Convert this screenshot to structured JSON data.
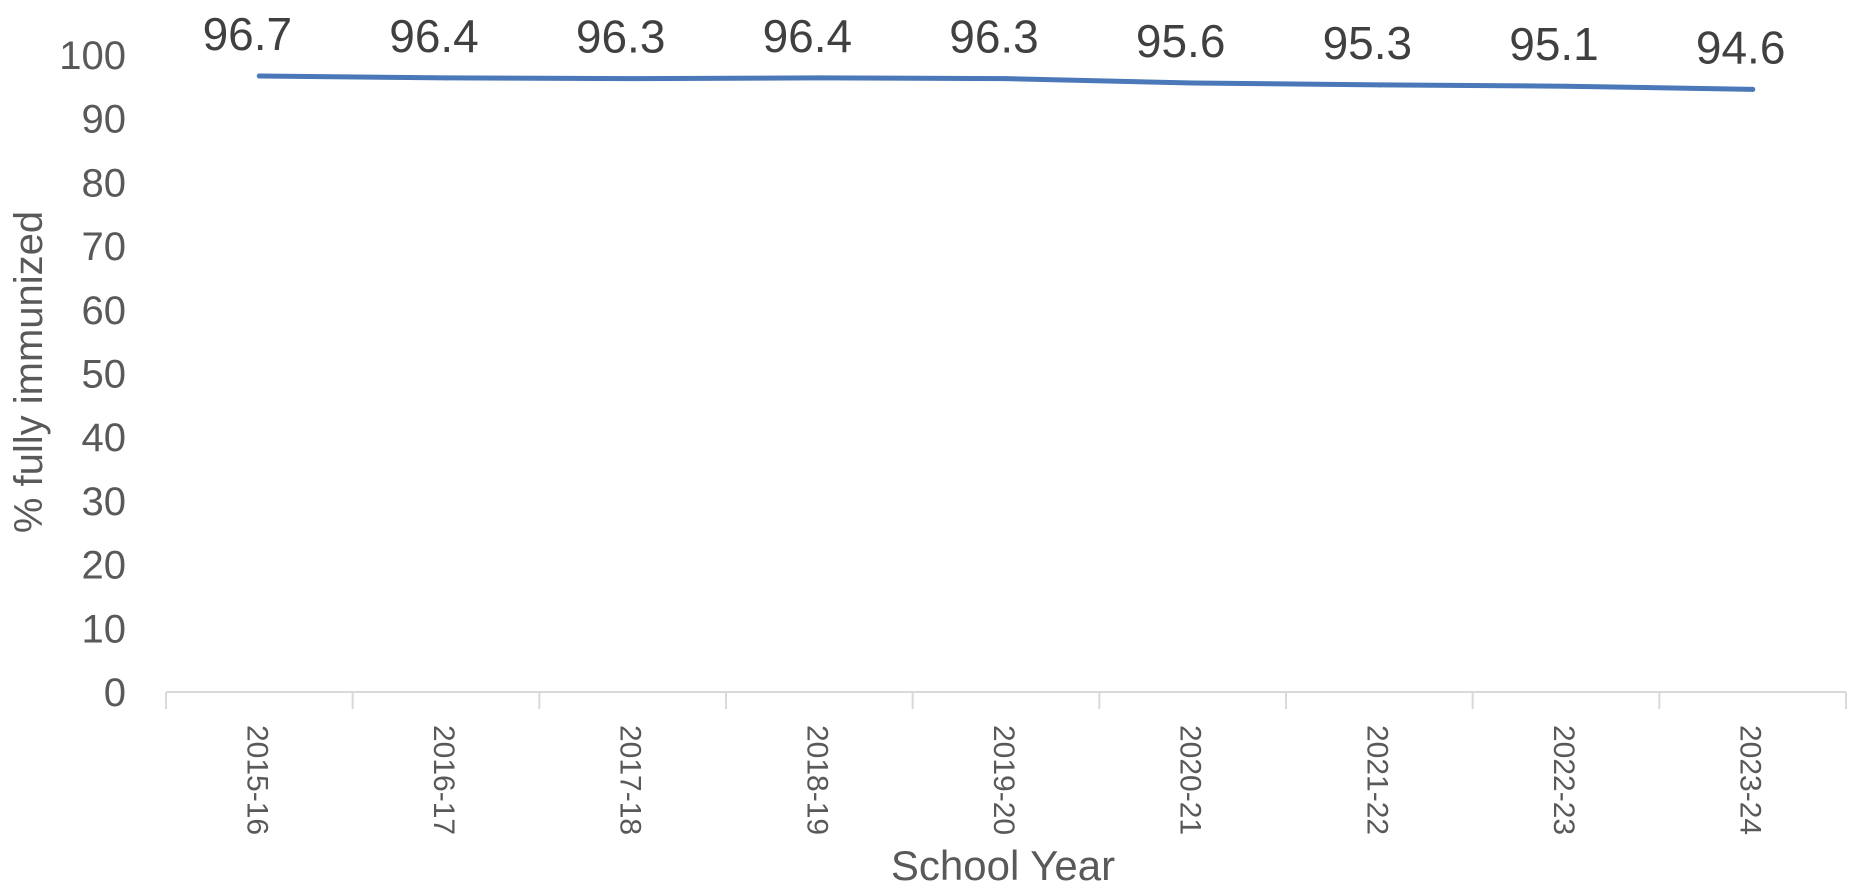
{
  "chart_data": {
    "type": "line",
    "title": "",
    "xlabel": "School Year",
    "ylabel": "% fully immunized",
    "categories": [
      "2015-16",
      "2016-17",
      "2017-18",
      "2018-19",
      "2019-20",
      "2020-21",
      "2021-22",
      "2022-23",
      "2023-24"
    ],
    "series": [
      {
        "values": [
          96.7,
          96.4,
          96.3,
          96.4,
          96.3,
          95.6,
          95.3,
          95.1,
          94.6
        ],
        "data_labels": [
          "96.7",
          "96.4",
          "96.3",
          "96.4",
          "96.3",
          "95.6",
          "95.3",
          "95.1",
          "94.6"
        ],
        "color": "#4a78b8"
      }
    ],
    "ylim": [
      0,
      100
    ],
    "y_ticks": [
      "0",
      "10",
      "20",
      "30",
      "40",
      "50",
      "60",
      "70",
      "80",
      "90",
      "100"
    ],
    "grid": false,
    "legend": "none",
    "axis_color": "#d9d9d9",
    "text_color": "#595959"
  }
}
